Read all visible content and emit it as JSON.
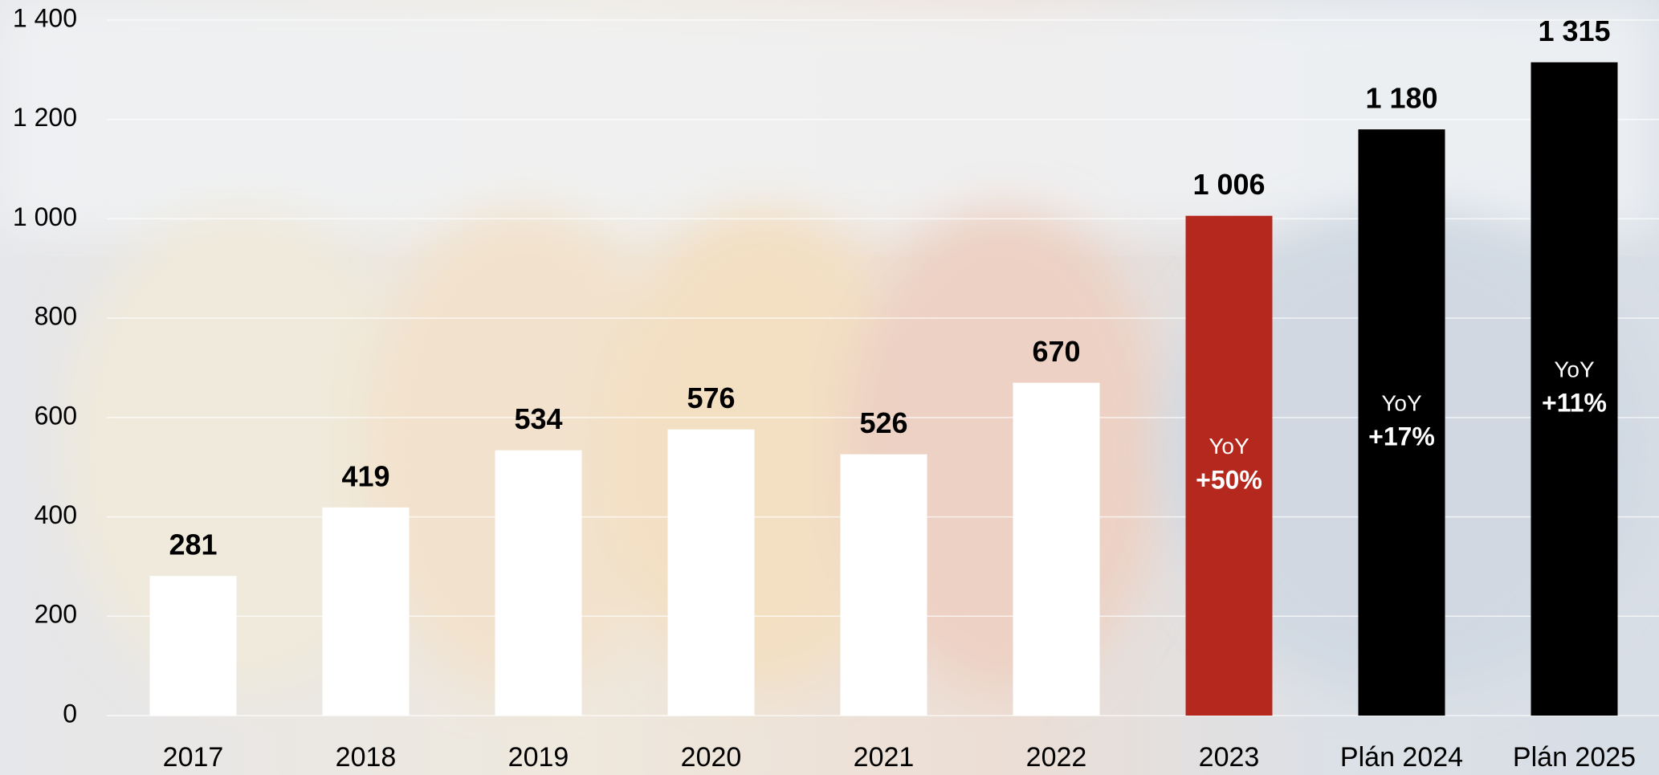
{
  "chart_data": {
    "type": "bar",
    "categories": [
      "2017",
      "2018",
      "2019",
      "2020",
      "2021",
      "2022",
      "2023",
      "Plán 2024",
      "Plán 2025"
    ],
    "values": [
      281,
      419,
      534,
      576,
      526,
      670,
      1006,
      1180,
      1315
    ],
    "value_labels": [
      "281",
      "419",
      "534",
      "576",
      "526",
      "670",
      "1 006",
      "1 180",
      "1 315"
    ],
    "colors": [
      "#ffffff",
      "#ffffff",
      "#ffffff",
      "#ffffff",
      "#ffffff",
      "#ffffff",
      "#b5281e",
      "#000000",
      "#000000"
    ],
    "yoy_title": "YoY",
    "yoy_labels": [
      null,
      null,
      null,
      null,
      null,
      null,
      "+50%",
      "+17%",
      "+11%"
    ],
    "ylim": [
      0,
      1400
    ],
    "yticks": [
      0,
      200,
      400,
      600,
      800,
      {
        "value": 1000,
        "label": "1 000"
      },
      {
        "value": 1200,
        "label": "1 200"
      },
      {
        "value": 1400,
        "label": "1 400"
      }
    ],
    "grid": true
  }
}
